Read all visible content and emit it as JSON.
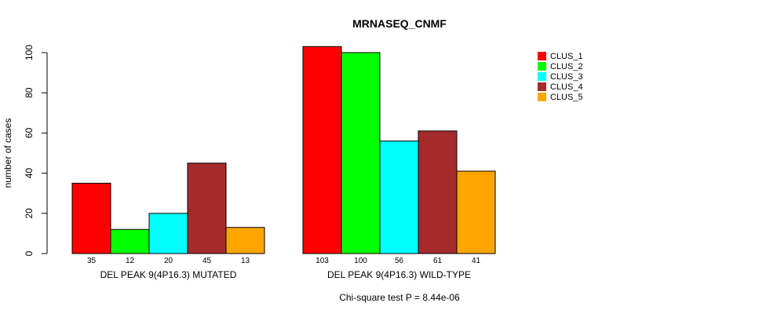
{
  "chart_data": {
    "type": "bar",
    "title": "MRNASEQ_CNMF",
    "ylabel": "number of cases",
    "ylim": [
      0,
      100
    ],
    "yticks": [
      0,
      20,
      40,
      60,
      80,
      100
    ],
    "groups": [
      "DEL PEAK  9(4P16.3) MUTATED",
      "DEL PEAK  9(4P16.3) WILD-TYPE"
    ],
    "series": [
      {
        "name": "CLUS_1",
        "color": "#ff0000",
        "values": [
          35,
          103
        ]
      },
      {
        "name": "CLUS_2",
        "color": "#00ff00",
        "values": [
          12,
          100
        ]
      },
      {
        "name": "CLUS_3",
        "color": "#00ffff",
        "values": [
          20,
          56
        ]
      },
      {
        "name": "CLUS_4",
        "color": "#a52a2a",
        "values": [
          45,
          61
        ]
      },
      {
        "name": "CLUS_5",
        "color": "#ffa500",
        "values": [
          13,
          41
        ]
      }
    ],
    "footnote": "Chi-square test P = 8.44e-06",
    "legend_position": "top-right"
  }
}
